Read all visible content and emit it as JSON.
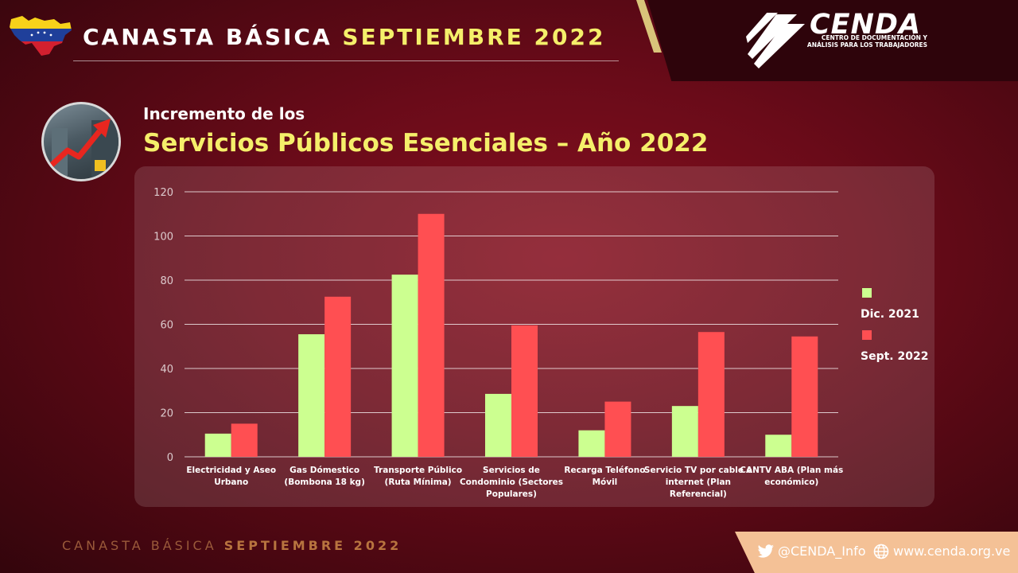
{
  "header": {
    "title_part1": "CANASTA BÁSICA",
    "title_part2": "SEPTIEMBRE 2022"
  },
  "logo": {
    "name": "CENDA",
    "subtitle_line1": "CENTRO DE DOCUMENTACIÓN Y",
    "subtitle_line2": "ANÁLISIS PARA LOS TRABAJADORES"
  },
  "section": {
    "subtitle": "Incremento de los",
    "title": "Servicios Públicos Esenciales – Año 2022"
  },
  "chart_data": {
    "type": "bar",
    "categories": [
      [
        "Electricidad y Aseo",
        "Urbano"
      ],
      [
        "Gas Dómestico",
        "(Bombona 18 kg)"
      ],
      [
        "Transporte Público",
        "(Ruta Mínima)"
      ],
      [
        "Servicios de",
        "Condominio (Sectores",
        "Populares)"
      ],
      [
        "Recarga Teléfono",
        "Móvil"
      ],
      [
        "Servicio TV por cable e",
        "internet (Plan",
        "Referencial)"
      ],
      [
        "CANTV ABA (Plan más",
        "económico)"
      ]
    ],
    "series": [
      {
        "name": "Dic. 2021",
        "color": "#ccff90",
        "values": [
          10.5,
          55.5,
          82.5,
          28.5,
          12,
          23,
          10
        ]
      },
      {
        "name": "Sept. 2022",
        "color": "#ff4f52",
        "values": [
          15,
          72.5,
          110,
          59.5,
          25,
          56.5,
          54.5
        ]
      }
    ],
    "yticks": [
      0,
      20,
      40,
      60,
      80,
      100,
      120
    ],
    "ylim": [
      0,
      120
    ],
    "grid": true,
    "legend_position": "right"
  },
  "footer": {
    "text_part1": "CANASTA BÁSICA",
    "text_part2": "SEPTIEMBRE 2022",
    "twitter": "@CENDA_Info",
    "website": "www.cenda.org.ve"
  },
  "colors": {
    "accent_yellow": "#f5ef6a",
    "footer_peach": "#f4c196",
    "logo_panel": "#2e040b"
  },
  "icons": [
    "venezuela-flag-map-icon",
    "cenda-logo-icon",
    "twitter-icon",
    "globe-icon"
  ]
}
